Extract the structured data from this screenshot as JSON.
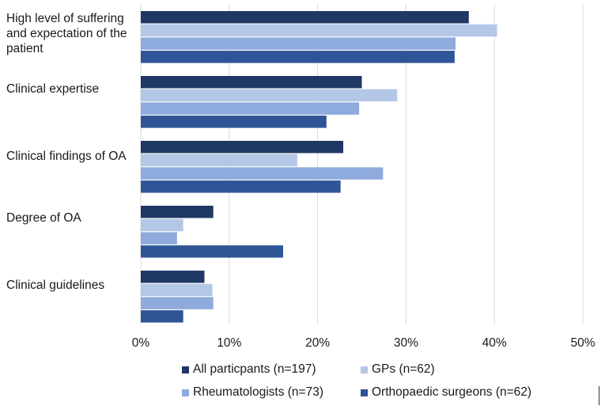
{
  "chart_data": {
    "type": "bar",
    "orientation": "horizontal",
    "title": "",
    "xlabel": "",
    "ylabel": "",
    "xlim": [
      0,
      50
    ],
    "x_ticks": [
      "0%",
      "10%",
      "20%",
      "30%",
      "40%",
      "50%"
    ],
    "grid": "vertical",
    "legend_position": "bottom",
    "categories": [
      "High level of suffering and expectation of the patient",
      "Clinical expertise",
      "Clinical findings of OA",
      "Degree of OA",
      "Clinical guidelines"
    ],
    "category_lines": [
      [
        "High level of suffering",
        "and expectation of the",
        "patient"
      ],
      [
        "Clinical expertise"
      ],
      [
        "Clinical findings of OA"
      ],
      [
        "Degree of OA"
      ],
      [
        "Clinical guidelines"
      ]
    ],
    "series": [
      {
        "name": "All particpants (n=197)",
        "color": "#1f3864",
        "values": [
          37.1,
          25.0,
          22.9,
          8.2,
          7.2
        ]
      },
      {
        "name": "GPs  (n=62)",
        "color": "#b4c7e7",
        "values": [
          40.3,
          29.0,
          17.7,
          4.8,
          8.1
        ]
      },
      {
        "name": "Rheumatologists (n=73)",
        "color": "#8faadc",
        "values": [
          35.6,
          24.7,
          27.4,
          4.1,
          8.2
        ]
      },
      {
        "name": "Orthopaedic surgeons (n=62)",
        "color": "#2f5597",
        "values": [
          35.5,
          21.0,
          22.6,
          16.1,
          4.8
        ]
      }
    ]
  }
}
